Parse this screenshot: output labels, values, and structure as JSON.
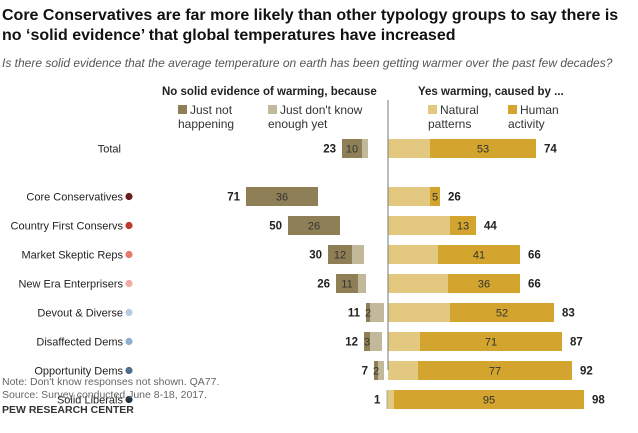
{
  "title": "Core Conservatives are far more likely than other typology groups to say there is no ‘solid evidence’ that global temperatures have increased",
  "subtitle": "Is there solid evidence that the average temperature on earth has been getting warmer over the past few decades?",
  "notes": [
    "Note: Don't know responses not shown. QA77.",
    "Source: Survey conducted June 8-18, 2017."
  ],
  "brand": "PEW RESEARCH CENTER",
  "chart_data": {
    "type": "bar",
    "orientation": "horizontal diverging stacked",
    "group_headers": {
      "left": "No solid evidence of warming, because",
      "right": "Yes warming, caused by ..."
    },
    "legend": [
      {
        "name": "Just not happening",
        "color": "#8e7f56"
      },
      {
        "name": "Just don't know enough yet",
        "color": "#c2b99b"
      },
      {
        "name": "Natural patterns",
        "color": "#e3c97f"
      },
      {
        "name": "Human activity",
        "color": "#d3a42e"
      }
    ],
    "categories": [
      "Total",
      "Core Conservatives",
      "Country First Conservs",
      "Market Skeptic Reps",
      "New Era Enterprisers",
      "Devout & Diverse",
      "Disaffected Dems",
      "Opportunity Dems",
      "Solid Liberals"
    ],
    "dot_colors": [
      null,
      "#6b1f1c",
      "#c0392b",
      "#e57a6e",
      "#f0aca2",
      "#b8cde0",
      "#8eb0cc",
      "#4f6f8c",
      "#263646"
    ],
    "no_evidence_total": [
      23,
      71,
      50,
      30,
      26,
      11,
      12,
      7,
      1
    ],
    "just_not_happening": [
      10,
      36,
      26,
      12,
      11,
      2,
      3,
      2,
      null
    ],
    "yes_warming_total": [
      74,
      26,
      44,
      66,
      66,
      83,
      87,
      92,
      98
    ],
    "human_activity": [
      53,
      5,
      13,
      41,
      36,
      52,
      71,
      77,
      95
    ]
  }
}
